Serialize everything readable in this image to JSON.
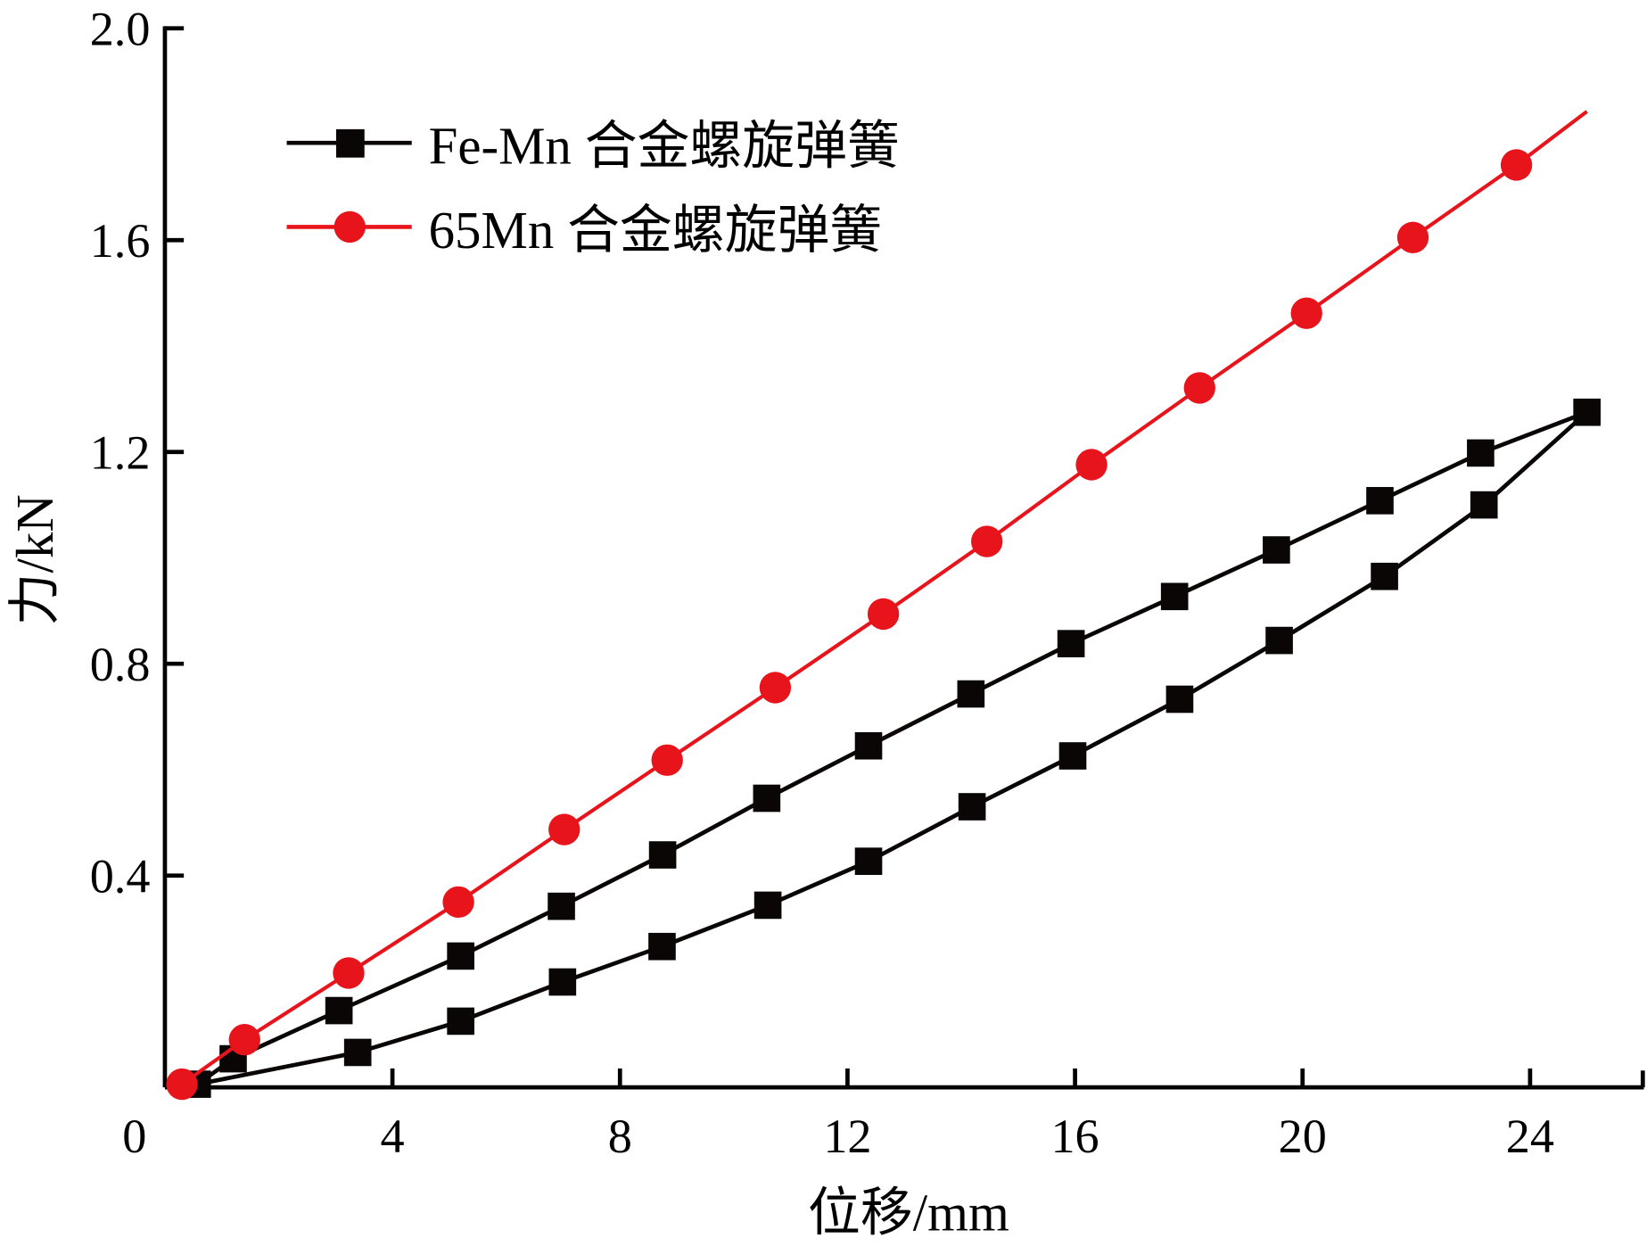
{
  "chart_data": {
    "type": "line",
    "title": "",
    "xlabel": "位移/mm",
    "ylabel": "力/kN",
    "xlim": [
      0,
      26
    ],
    "ylim": [
      0,
      2.0
    ],
    "xticks": [
      "0",
      "4",
      "8",
      "12",
      "16",
      "20",
      "24"
    ],
    "xtick_values": [
      0,
      4,
      8,
      12,
      16,
      20,
      24
    ],
    "yticks": [
      "0.4",
      "0.8",
      "1.2",
      "1.6",
      "2.0"
    ],
    "ytick_values": [
      0.4,
      0.8,
      1.2,
      1.6,
      2.0
    ],
    "grid": false,
    "legend_position": "top-left",
    "series": [
      {
        "name": "Fe-Mn 合金螺旋弹簧",
        "color": "#0a0606",
        "marker": "square",
        "loading": {
          "x": [
            0.57,
            1.2,
            3.06,
            5.2,
            6.97,
            8.75,
            10.58,
            12.37,
            14.17,
            15.93,
            17.75,
            19.54,
            21.36,
            23.13,
            25.0
          ],
          "y": [
            0.006,
            0.054,
            0.145,
            0.248,
            0.342,
            0.439,
            0.546,
            0.645,
            0.743,
            0.838,
            0.927,
            1.015,
            1.108,
            1.198,
            1.275
          ]
        },
        "unloading": {
          "x": [
            25.0,
            23.19,
            21.44,
            19.59,
            17.84,
            15.96,
            14.19,
            12.37,
            10.6,
            8.74,
            6.99,
            5.2,
            3.39,
            0.57
          ],
          "y": [
            1.275,
            1.1,
            0.965,
            0.844,
            0.733,
            0.626,
            0.53,
            0.427,
            0.344,
            0.266,
            0.199,
            0.125,
            0.066,
            0.006
          ]
        }
      },
      {
        "name": "65Mn 合金螺旋弹簧",
        "color": "#e8141c",
        "marker": "circle",
        "x": [
          0.3,
          1.4,
          3.23,
          5.16,
          7.02,
          8.83,
          10.73,
          12.63,
          14.45,
          16.29,
          18.19,
          20.07,
          21.94,
          23.76
        ],
        "y": [
          0.006,
          0.09,
          0.216,
          0.35,
          0.487,
          0.618,
          0.755,
          0.894,
          1.031,
          1.176,
          1.321,
          1.462,
          1.605,
          1.742
        ],
        "line_end": {
          "x": 25.0,
          "y": 1.843
        }
      }
    ]
  }
}
